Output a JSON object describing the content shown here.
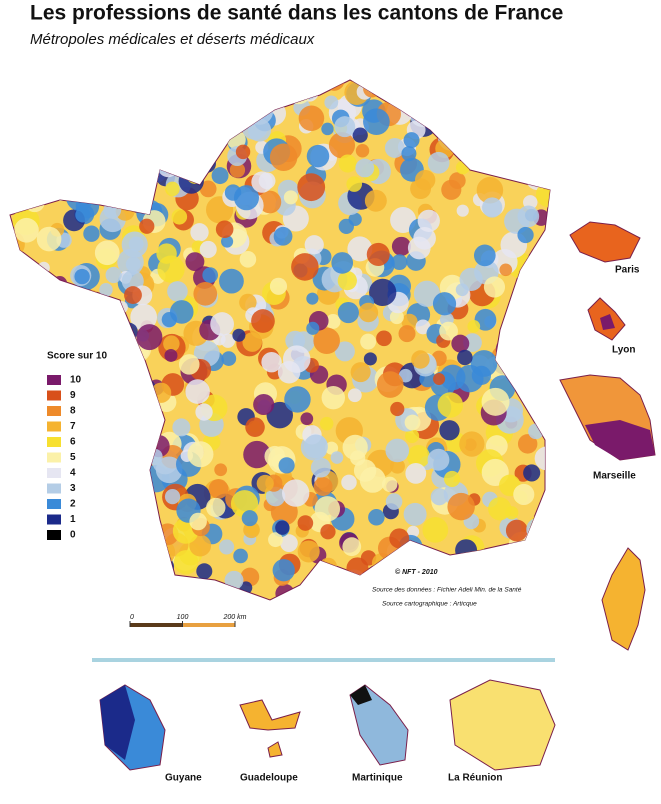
{
  "title": "Les professions de santé dans les cantons de France",
  "subtitle": "Métropoles médicales et déserts médicaux",
  "legend": {
    "title": "Score sur 10",
    "items": [
      {
        "value": 10,
        "color": "#7a1a6a"
      },
      {
        "value": 9,
        "color": "#d8501a"
      },
      {
        "value": 8,
        "color": "#ee8a2a"
      },
      {
        "value": 7,
        "color": "#f5b330"
      },
      {
        "value": 6,
        "color": "#f7e030"
      },
      {
        "value": 5,
        "color": "#fbf1a8"
      },
      {
        "value": 4,
        "color": "#e6e6f2"
      },
      {
        "value": 3,
        "color": "#b4cde6"
      },
      {
        "value": 2,
        "color": "#3a8ad8"
      },
      {
        "value": 1,
        "color": "#1b2a8a"
      },
      {
        "value": 0,
        "color": "#000000"
      }
    ]
  },
  "insets": [
    "Paris",
    "Lyon",
    "Marseille"
  ],
  "dom": [
    "Guyane",
    "Guadeloupe",
    "Martinique",
    "La Réunion"
  ],
  "credits": {
    "copyright": "© NFT - 2010",
    "source_data": "Source des données : Fichier Adeli Min. de la Santé",
    "source_map": "Source cartographique : Articque"
  },
  "scale_bar": {
    "range": [
      0,
      200
    ],
    "ticks": [
      0,
      100,
      {
        "value": 200,
        "label": "200 km"
      }
    ]
  }
}
